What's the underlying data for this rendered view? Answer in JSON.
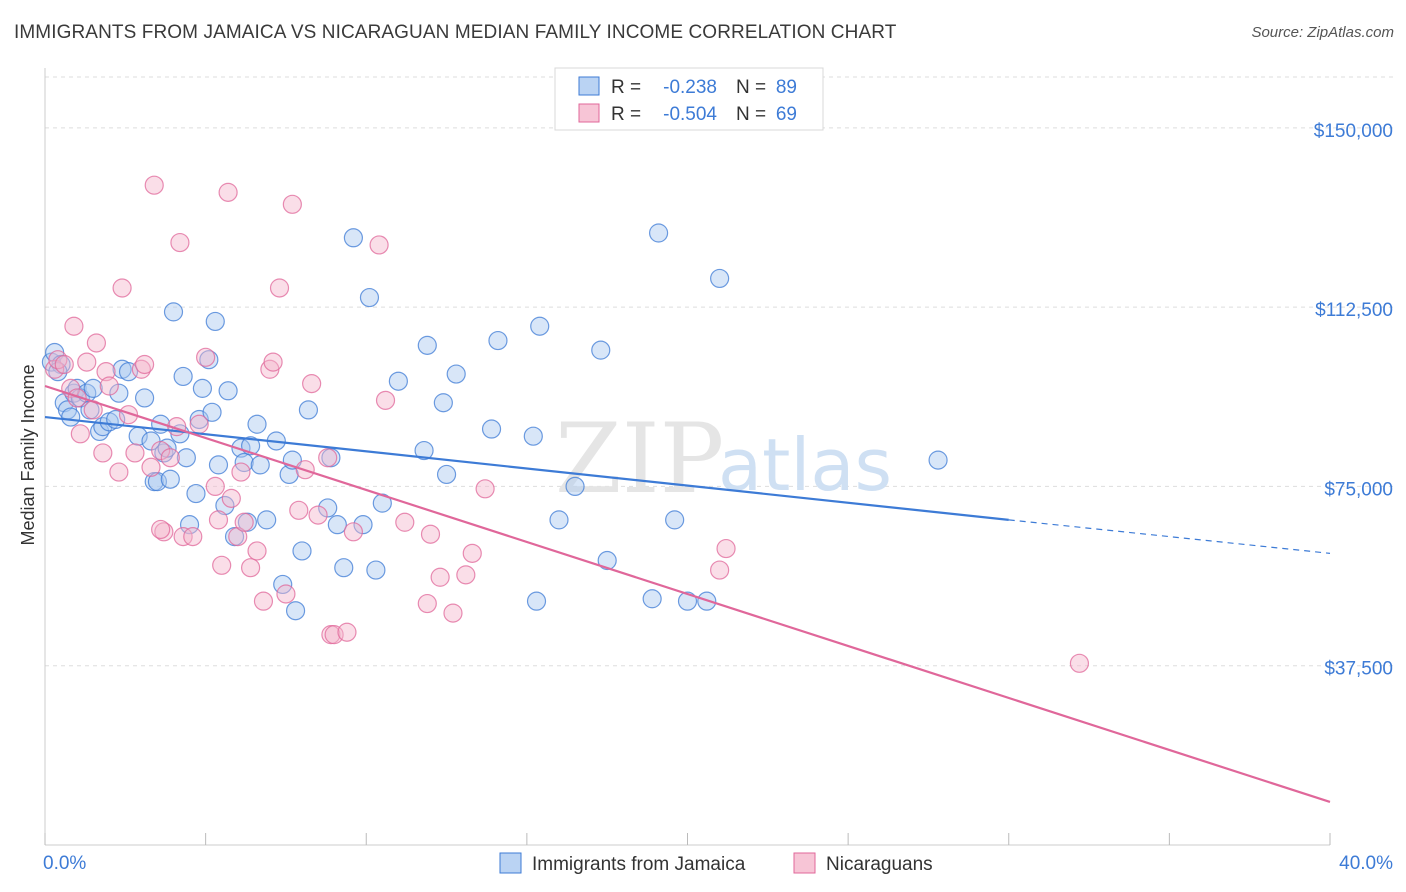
{
  "title": "IMMIGRANTS FROM JAMAICA VS NICARAGUAN MEDIAN FAMILY INCOME CORRELATION CHART",
  "source": "Source: ZipAtlas.com",
  "watermark": {
    "zip": "ZIP",
    "atlas": "atlas"
  },
  "colors": {
    "blue": "#3d7bd6",
    "blue_fill": "#a9c8f0",
    "pink": "#e0679a",
    "pink_fill": "#f5b6cc",
    "grid": "#dddddd",
    "tick_label": "#3d7bd6"
  },
  "chart_data": {
    "type": "scatter",
    "ylabel": "Median Family Income",
    "xlim": [
      0,
      40
    ],
    "ylim": [
      0,
      160000
    ],
    "x_tick_labels": [
      "0.0%",
      "40.0%"
    ],
    "y_ticks": [
      {
        "value": 37500,
        "label": "$37,500"
      },
      {
        "value": 75000,
        "label": "$75,000"
      },
      {
        "value": 112500,
        "label": "$112,500"
      },
      {
        "value": 150000,
        "label": "$150,000"
      }
    ],
    "grid": true,
    "legend_stats": [
      {
        "r_label": "R = ",
        "r": "-0.238",
        "n_label": "N = ",
        "n": "89",
        "color": "blue"
      },
      {
        "r_label": "R = ",
        "r": "-0.504",
        "n_label": "N = ",
        "n": "69",
        "color": "pink"
      }
    ],
    "series": [
      {
        "name": "Immigrants from Jamaica",
        "color": "blue",
        "trend": {
          "x0": 0,
          "y0": 89500,
          "x1": 30,
          "y1": 68000,
          "dash_to_x": 40,
          "dash_to_y": 61000
        },
        "points": [
          [
            0.2,
            101000
          ],
          [
            0.3,
            103000
          ],
          [
            0.5,
            100500
          ],
          [
            0.6,
            92500
          ],
          [
            0.7,
            91000
          ],
          [
            0.8,
            89500
          ],
          [
            0.9,
            94500
          ],
          [
            1.0,
            95500
          ],
          [
            1.1,
            93500
          ],
          [
            1.3,
            94500
          ],
          [
            1.4,
            91000
          ],
          [
            1.5,
            95500
          ],
          [
            1.7,
            86500
          ],
          [
            1.8,
            87500
          ],
          [
            2.0,
            88500
          ],
          [
            2.2,
            89000
          ],
          [
            2.3,
            94500
          ],
          [
            2.4,
            99500
          ],
          [
            2.6,
            99000
          ],
          [
            2.9,
            85500
          ],
          [
            3.1,
            93500
          ],
          [
            3.3,
            84500
          ],
          [
            3.4,
            76000
          ],
          [
            3.5,
            76000
          ],
          [
            3.6,
            88000
          ],
          [
            3.7,
            82000
          ],
          [
            3.8,
            83000
          ],
          [
            3.9,
            76500
          ],
          [
            4.0,
            111500
          ],
          [
            4.2,
            86000
          ],
          [
            4.3,
            98000
          ],
          [
            4.4,
            81000
          ],
          [
            4.5,
            67000
          ],
          [
            4.7,
            73500
          ],
          [
            4.8,
            89000
          ],
          [
            4.9,
            95500
          ],
          [
            5.1,
            101500
          ],
          [
            5.2,
            90500
          ],
          [
            5.3,
            109500
          ],
          [
            5.4,
            79500
          ],
          [
            5.6,
            71000
          ],
          [
            5.7,
            95000
          ],
          [
            5.9,
            64500
          ],
          [
            6.1,
            83000
          ],
          [
            6.2,
            80000
          ],
          [
            6.3,
            67500
          ],
          [
            6.4,
            83500
          ],
          [
            6.6,
            88000
          ],
          [
            6.7,
            79500
          ],
          [
            6.9,
            68000
          ],
          [
            7.2,
            84500
          ],
          [
            7.4,
            54500
          ],
          [
            7.6,
            77500
          ],
          [
            7.7,
            80500
          ],
          [
            7.8,
            49000
          ],
          [
            8.0,
            61500
          ],
          [
            8.2,
            91000
          ],
          [
            8.8,
            70500
          ],
          [
            8.9,
            81000
          ],
          [
            9.1,
            67000
          ],
          [
            9.3,
            58000
          ],
          [
            9.6,
            127000
          ],
          [
            9.9,
            67000
          ],
          [
            10.1,
            114500
          ],
          [
            10.3,
            57500
          ],
          [
            10.5,
            71500
          ],
          [
            11.0,
            97000
          ],
          [
            11.8,
            82500
          ],
          [
            11.9,
            104500
          ],
          [
            12.4,
            92500
          ],
          [
            12.5,
            77500
          ],
          [
            12.8,
            98500
          ],
          [
            13.9,
            87000
          ],
          [
            14.1,
            105500
          ],
          [
            15.2,
            85500
          ],
          [
            15.4,
            108500
          ],
          [
            15.3,
            51000
          ],
          [
            16.0,
            68000
          ],
          [
            16.5,
            75000
          ],
          [
            17.3,
            103500
          ],
          [
            17.5,
            59500
          ],
          [
            18.9,
            51500
          ],
          [
            19.1,
            128000
          ],
          [
            19.6,
            68000
          ],
          [
            20.0,
            51000
          ],
          [
            20.6,
            51000
          ],
          [
            21.0,
            118500
          ],
          [
            27.8,
            80500
          ],
          [
            0.4,
            99000
          ]
        ]
      },
      {
        "name": "Nicaraguans",
        "color": "pink",
        "trend": {
          "x0": 0,
          "y0": 96000,
          "x1": 40,
          "y1": 9000
        },
        "points": [
          [
            0.3,
            99500
          ],
          [
            0.4,
            101500
          ],
          [
            0.6,
            100500
          ],
          [
            0.8,
            95500
          ],
          [
            0.9,
            108500
          ],
          [
            1.0,
            93500
          ],
          [
            1.1,
            86000
          ],
          [
            1.3,
            101000
          ],
          [
            1.5,
            91000
          ],
          [
            1.6,
            105000
          ],
          [
            1.8,
            82000
          ],
          [
            1.9,
            99000
          ],
          [
            2.0,
            96000
          ],
          [
            2.3,
            78000
          ],
          [
            2.4,
            116500
          ],
          [
            2.6,
            90000
          ],
          [
            2.8,
            82000
          ],
          [
            3.0,
            99500
          ],
          [
            3.1,
            100500
          ],
          [
            3.3,
            79000
          ],
          [
            3.4,
            138000
          ],
          [
            3.6,
            82500
          ],
          [
            3.7,
            65500
          ],
          [
            3.9,
            81000
          ],
          [
            4.1,
            87500
          ],
          [
            4.2,
            126000
          ],
          [
            4.3,
            64500
          ],
          [
            4.6,
            64500
          ],
          [
            4.8,
            88000
          ],
          [
            5.0,
            102000
          ],
          [
            5.3,
            75000
          ],
          [
            5.4,
            68000
          ],
          [
            5.5,
            58500
          ],
          [
            5.7,
            136500
          ],
          [
            5.8,
            72500
          ],
          [
            6.0,
            64500
          ],
          [
            6.1,
            78000
          ],
          [
            6.2,
            67500
          ],
          [
            6.4,
            58000
          ],
          [
            6.6,
            61500
          ],
          [
            6.8,
            51000
          ],
          [
            7.0,
            99500
          ],
          [
            7.1,
            101000
          ],
          [
            7.3,
            116500
          ],
          [
            7.5,
            52500
          ],
          [
            7.7,
            134000
          ],
          [
            7.9,
            70000
          ],
          [
            8.1,
            78500
          ],
          [
            8.3,
            96500
          ],
          [
            8.5,
            69000
          ],
          [
            8.8,
            81000
          ],
          [
            8.9,
            44000
          ],
          [
            9.0,
            44000
          ],
          [
            9.4,
            44500
          ],
          [
            9.6,
            65500
          ],
          [
            10.4,
            125500
          ],
          [
            10.6,
            93000
          ],
          [
            11.2,
            67500
          ],
          [
            11.9,
            50500
          ],
          [
            12.0,
            65000
          ],
          [
            12.3,
            56000
          ],
          [
            12.7,
            48500
          ],
          [
            13.1,
            56500
          ],
          [
            13.3,
            61000
          ],
          [
            13.7,
            74500
          ],
          [
            21.0,
            57500
          ],
          [
            21.2,
            62000
          ],
          [
            32.2,
            38000
          ],
          [
            3.6,
            66000
          ]
        ]
      }
    ]
  }
}
